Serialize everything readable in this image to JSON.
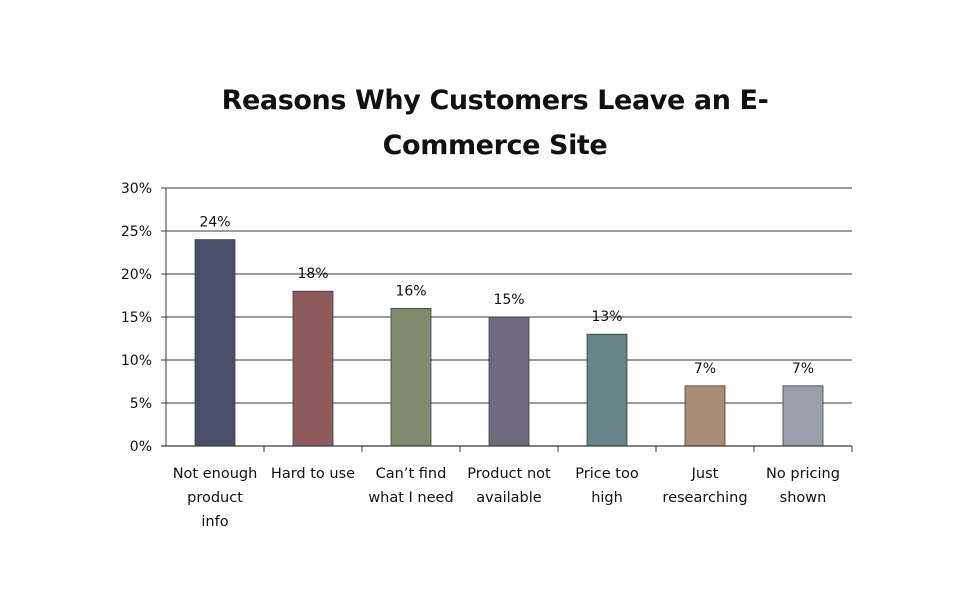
{
  "chart_data": {
    "type": "bar",
    "title": "Reasons Why Customers Leave an  E-Commerce Site",
    "title_lines": [
      "Reasons Why Customers Leave an  E-",
      "Commerce Site"
    ],
    "categories": [
      "Not enough product info",
      "Hard to use",
      "Can’t find what I need",
      "Product not available",
      "Price too high",
      "Just researching",
      "No pricing shown"
    ],
    "category_lines": [
      [
        "Not enough",
        "product",
        "info"
      ],
      [
        "Hard to use"
      ],
      [
        "Can’t find",
        "what I need"
      ],
      [
        "Product not",
        "available"
      ],
      [
        "Price too",
        "high"
      ],
      [
        "Just",
        "researching"
      ],
      [
        "No pricing",
        "shown"
      ]
    ],
    "values": [
      24,
      18,
      16,
      15,
      13,
      7,
      7
    ],
    "data_labels": [
      "24%",
      "18%",
      "16%",
      "15%",
      "13%",
      "7%",
      "7%"
    ],
    "ylim": [
      0,
      30
    ],
    "yticks": [
      0,
      5,
      10,
      15,
      20,
      25,
      30
    ],
    "ytick_labels": [
      "0%",
      "5%",
      "10%",
      "15%",
      "20%",
      "25%",
      "30%"
    ],
    "xlabel": "",
    "ylabel": "",
    "grid": true,
    "legend": "none",
    "bar_colors": [
      "#4a4f69",
      "#8e5a5c",
      "#7e8b6c",
      "#6f6a80",
      "#678388",
      "#a88a77",
      "#9aa0ab"
    ],
    "grid_color": "#3a3a3a"
  }
}
